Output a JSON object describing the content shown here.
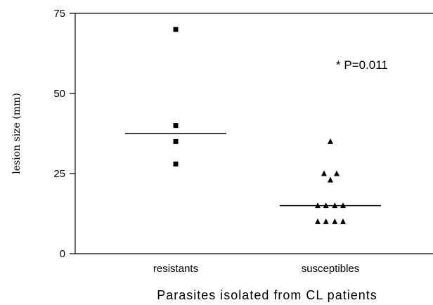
{
  "chart_data": {
    "type": "scatter",
    "xlabel": "Parasites isolated from CL patients",
    "ylabel": "lesion size (mm)",
    "ylim": [
      0,
      75
    ],
    "yticks": [
      0,
      25,
      50,
      75
    ],
    "categories": [
      "resistants",
      "susceptibles"
    ],
    "grid": false,
    "series": [
      {
        "category": "resistants",
        "marker": "square",
        "points": [
          {
            "y": 70,
            "jitter": 0
          },
          {
            "y": 40,
            "jitter": 0
          },
          {
            "y": 35,
            "jitter": 0
          },
          {
            "y": 28,
            "jitter": 0
          }
        ],
        "median": 37.5
      },
      {
        "category": "susceptibles",
        "marker": "triangle",
        "points": [
          {
            "y": 35,
            "jitter": 0
          },
          {
            "y": 25,
            "jitter": -1
          },
          {
            "y": 25,
            "jitter": 1
          },
          {
            "y": 23,
            "jitter": 0
          },
          {
            "y": 15,
            "jitter": -2
          },
          {
            "y": 15,
            "jitter": -0.7
          },
          {
            "y": 15,
            "jitter": 0.7
          },
          {
            "y": 15,
            "jitter": 2
          },
          {
            "y": 10,
            "jitter": -2
          },
          {
            "y": 10,
            "jitter": -0.7
          },
          {
            "y": 10,
            "jitter": 0.7
          },
          {
            "y": 10,
            "jitter": 2
          }
        ],
        "median": 15
      }
    ],
    "annotation": "* P=0.011",
    "colors": {
      "marker": "#000000",
      "axis": "#000000",
      "background": "#ffffff"
    }
  }
}
